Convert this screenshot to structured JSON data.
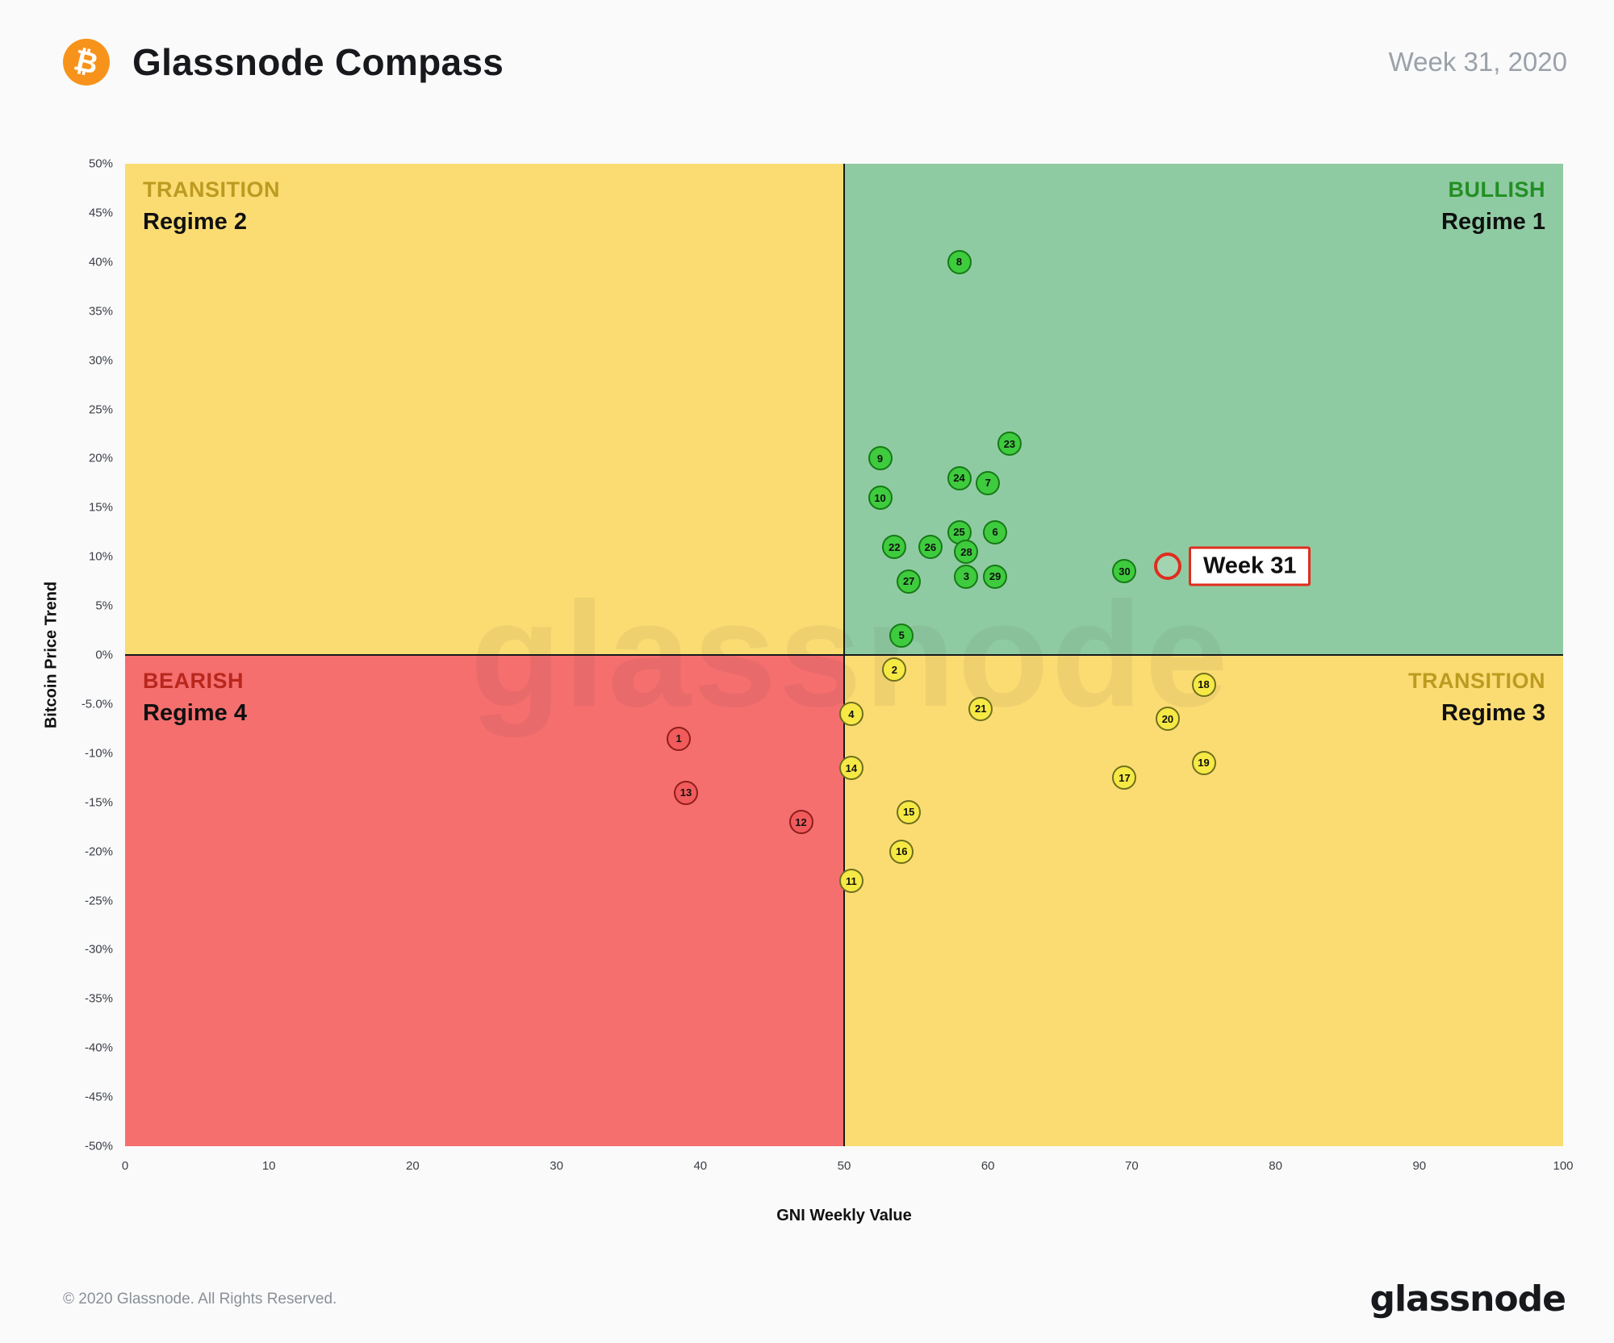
{
  "header": {
    "title": "Glassnode Compass",
    "week_label": "Week 31, 2020",
    "bitcoin_glyph": "₿"
  },
  "quadrants": {
    "top_left": {
      "tag": "TRANSITION",
      "name": "Regime 2",
      "tag_color": "#BD9B21",
      "bg": "#FADC73"
    },
    "top_right": {
      "tag": "BULLISH",
      "name": "Regime 1",
      "tag_color": "#238F23",
      "bg": "#8FCBA2"
    },
    "bottom_left": {
      "tag": "BEARISH",
      "name": "Regime 4",
      "tag_color": "#B8271D",
      "bg": "#F56F6F"
    },
    "bottom_right": {
      "tag": "TRANSITION",
      "name": "Regime 3",
      "tag_color": "#BD9B21",
      "bg": "#FADC73"
    }
  },
  "chart_data": {
    "type": "scatter",
    "title": "Glassnode Compass",
    "xlabel": "GNI  Weekly Value",
    "ylabel": "Bitcoin  Price Trend",
    "xlim": [
      0,
      100
    ],
    "ylim": [
      -50,
      50
    ],
    "grid": false,
    "x_ticks": [
      "0",
      "10",
      "20",
      "30",
      "40",
      "50",
      "60",
      "70",
      "80",
      "90",
      "100"
    ],
    "y_ticks": [
      "50%",
      "45%",
      "40%",
      "35%",
      "30%",
      "25%",
      "20%",
      "15%",
      "10%",
      "5%",
      "0%",
      "-5.0%",
      "-10%",
      "-15%",
      "-20%",
      "-25%",
      "-30%",
      "-35%",
      "-40%",
      "-45%",
      "-50%"
    ],
    "point_styles": {
      "bullish": {
        "fill": "#3ECB3E",
        "border": "#157A15"
      },
      "transition": {
        "fill": "#F6E945",
        "border": "#6F6F1E"
      },
      "bearish": {
        "fill": "#F15B5B",
        "border": "#8F1D1D"
      }
    },
    "points": [
      {
        "week": 1,
        "x": 38.5,
        "y": -8.5,
        "regime": "bearish"
      },
      {
        "week": 2,
        "x": 53.5,
        "y": -1.5,
        "regime": "transition"
      },
      {
        "week": 3,
        "x": 58.5,
        "y": 8,
        "regime": "bullish"
      },
      {
        "week": 4,
        "x": 50.5,
        "y": -6,
        "regime": "transition"
      },
      {
        "week": 5,
        "x": 54,
        "y": 2,
        "regime": "bullish"
      },
      {
        "week": 6,
        "x": 60.5,
        "y": 12.5,
        "regime": "bullish"
      },
      {
        "week": 7,
        "x": 60,
        "y": 17.5,
        "regime": "bullish"
      },
      {
        "week": 8,
        "x": 58,
        "y": 40,
        "regime": "bullish"
      },
      {
        "week": 9,
        "x": 52.5,
        "y": 20,
        "regime": "bullish"
      },
      {
        "week": 10,
        "x": 52.5,
        "y": 16,
        "regime": "bullish"
      },
      {
        "week": 11,
        "x": 50.5,
        "y": -23,
        "regime": "transition"
      },
      {
        "week": 12,
        "x": 47,
        "y": -17,
        "regime": "bearish"
      },
      {
        "week": 13,
        "x": 39,
        "y": -14,
        "regime": "bearish"
      },
      {
        "week": 14,
        "x": 50.5,
        "y": -11.5,
        "regime": "transition"
      },
      {
        "week": 15,
        "x": 54.5,
        "y": -16,
        "regime": "transition"
      },
      {
        "week": 16,
        "x": 54,
        "y": -20,
        "regime": "transition"
      },
      {
        "week": 17,
        "x": 69.5,
        "y": -12.5,
        "regime": "transition"
      },
      {
        "week": 18,
        "x": 75,
        "y": -3,
        "regime": "transition"
      },
      {
        "week": 19,
        "x": 75,
        "y": -11,
        "regime": "transition"
      },
      {
        "week": 20,
        "x": 72.5,
        "y": -6.5,
        "regime": "transition"
      },
      {
        "week": 21,
        "x": 59.5,
        "y": -5.5,
        "regime": "transition"
      },
      {
        "week": 22,
        "x": 53.5,
        "y": 11,
        "regime": "bullish"
      },
      {
        "week": 23,
        "x": 61.5,
        "y": 21.5,
        "regime": "bullish"
      },
      {
        "week": 24,
        "x": 58,
        "y": 18,
        "regime": "bullish"
      },
      {
        "week": 25,
        "x": 58,
        "y": 12.5,
        "regime": "bullish"
      },
      {
        "week": 26,
        "x": 56,
        "y": 11,
        "regime": "bullish"
      },
      {
        "week": 27,
        "x": 54.5,
        "y": 7.5,
        "regime": "bullish"
      },
      {
        "week": 28,
        "x": 58.5,
        "y": 10.5,
        "regime": "bullish"
      },
      {
        "week": 29,
        "x": 60.5,
        "y": 8,
        "regime": "bullish"
      },
      {
        "week": 30,
        "x": 69.5,
        "y": 8.5,
        "regime": "bullish"
      }
    ],
    "current": {
      "label": "Week 31",
      "x": 72.5,
      "y": 9
    }
  },
  "watermark": "glassnode",
  "footer": {
    "copyright": "© 2020 Glassnode. All Rights Reserved.",
    "brand": "glassnode"
  }
}
